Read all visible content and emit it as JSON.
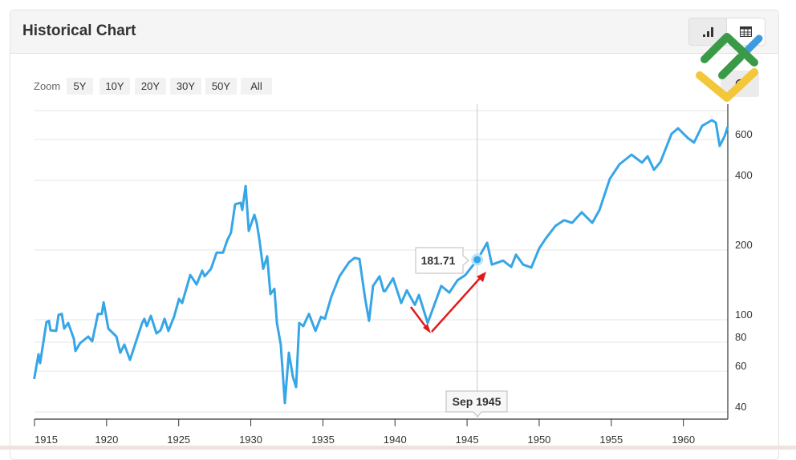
{
  "header": {
    "title": "Historical Chart"
  },
  "toolbar": {
    "chart_view_icon": "bar-chart-icon",
    "table_view_icon": "table-icon",
    "extra_icon": "refresh-icon"
  },
  "zoom": {
    "label": "Zoom",
    "buttons": [
      "5Y",
      "10Y",
      "20Y",
      "30Y",
      "50Y",
      "All"
    ]
  },
  "tooltip": {
    "value": "181.71",
    "date": "Sep 1945"
  },
  "colors": {
    "line": "#36a6e6",
    "annotation_arrow": "#e11b1b",
    "logo_green": "#3a9a47",
    "logo_yellow": "#f2c73a",
    "logo_blue": "#3d9be0"
  },
  "chart_data": {
    "type": "line",
    "title": "",
    "xlabel": "",
    "ylabel": "",
    "y_scale": "log",
    "xlim": [
      1915,
      1963.1
    ],
    "ylim": [
      37,
      850
    ],
    "x_ticks": [
      "1915",
      "1920",
      "1925",
      "1930",
      "1935",
      "1940",
      "1945",
      "1950",
      "1955",
      "1960"
    ],
    "y_ticks": [
      "40",
      "60",
      "80",
      "100",
      "200",
      "400",
      "600"
    ],
    "y_gridlines": [
      40,
      60,
      80,
      100,
      200,
      400,
      600,
      800
    ],
    "grid": true,
    "highlight": {
      "x": 1945.7,
      "y": 181.71,
      "label": "Sep 1945"
    },
    "series": [
      {
        "x": [
          1914.98,
          1915.28,
          1915.39,
          1915.83,
          1916.0,
          1916.11,
          1916.5,
          1916.67,
          1916.89,
          1917.06,
          1917.34,
          1917.73,
          1917.84,
          1918.17,
          1918.73,
          1919.0,
          1919.4,
          1919.67,
          1919.79,
          1919.95,
          1920.12,
          1920.68,
          1920.95,
          1921.23,
          1921.62,
          1922.46,
          1922.62,
          1922.79,
          1923.07,
          1923.46,
          1923.74,
          1924.02,
          1924.29,
          1924.68,
          1925.02,
          1925.24,
          1925.8,
          1925.96,
          1926.24,
          1926.63,
          1926.8,
          1927.24,
          1927.63,
          1928.08,
          1928.36,
          1928.63,
          1928.91,
          1929.3,
          1929.41,
          1929.64,
          1929.86,
          1930.25,
          1930.41,
          1930.58,
          1930.86,
          1931.14,
          1931.36,
          1931.64,
          1931.81,
          1932.08,
          1932.36,
          1932.64,
          1932.92,
          1933.14,
          1933.36,
          1933.64,
          1934.03,
          1934.48,
          1934.87,
          1935.14,
          1935.59,
          1936.15,
          1936.81,
          1937.2,
          1937.54,
          1937.93,
          1938.2,
          1938.48,
          1938.93,
          1939.21,
          1939.32,
          1939.87,
          1940.43,
          1940.82,
          1941.38,
          1941.66,
          1942.27,
          1943.21,
          1943.77,
          1944.33,
          1944.88,
          1945.72,
          1946.39,
          1946.72,
          1947.5,
          1948.06,
          1948.39,
          1948.89,
          1949.45,
          1950.0,
          1950.45,
          1951.12,
          1951.73,
          1952.28,
          1952.95,
          1953.68,
          1954.18,
          1954.9,
          1955.57,
          1956.4,
          1957.13,
          1957.52,
          1957.96,
          1958.41,
          1959.18,
          1959.63,
          1960.3,
          1960.74,
          1961.3,
          1961.97,
          1962.25,
          1962.52,
          1962.86,
          1963.08
        ],
        "values": [
          55.5,
          71,
          65,
          97.6,
          99,
          90,
          89.5,
          105,
          106,
          91.6,
          96.9,
          82.6,
          73.3,
          79.4,
          84.6,
          80.7,
          106,
          106,
          119,
          105,
          91.6,
          84.6,
          72.1,
          78.1,
          67.1,
          96.9,
          101,
          93.8,
          104,
          87.3,
          90,
          101,
          89.5,
          103,
          123,
          118,
          156,
          151,
          142,
          163,
          154,
          166,
          195,
          195,
          220,
          238,
          315,
          320,
          298,
          378,
          242,
          284,
          262,
          225,
          166,
          188,
          129,
          136,
          96.9,
          78.1,
          43.7,
          72.1,
          56.8,
          51.2,
          96.9,
          93.8,
          106,
          89.5,
          103,
          101,
          126,
          154,
          177,
          185,
          183,
          123,
          99,
          140,
          154,
          133,
          133,
          151,
          118,
          134,
          116,
          128,
          96.9,
          140,
          131,
          148,
          156,
          181.71,
          215,
          173,
          180,
          169,
          191,
          173,
          168,
          203,
          224,
          254,
          269,
          262,
          291,
          262,
          298,
          406,
          469,
          516,
          477,
          508,
          444,
          480,
          635,
          671,
          610,
          582,
          687,
          727,
          710,
          563,
          620,
          682
        ]
      }
    ]
  }
}
